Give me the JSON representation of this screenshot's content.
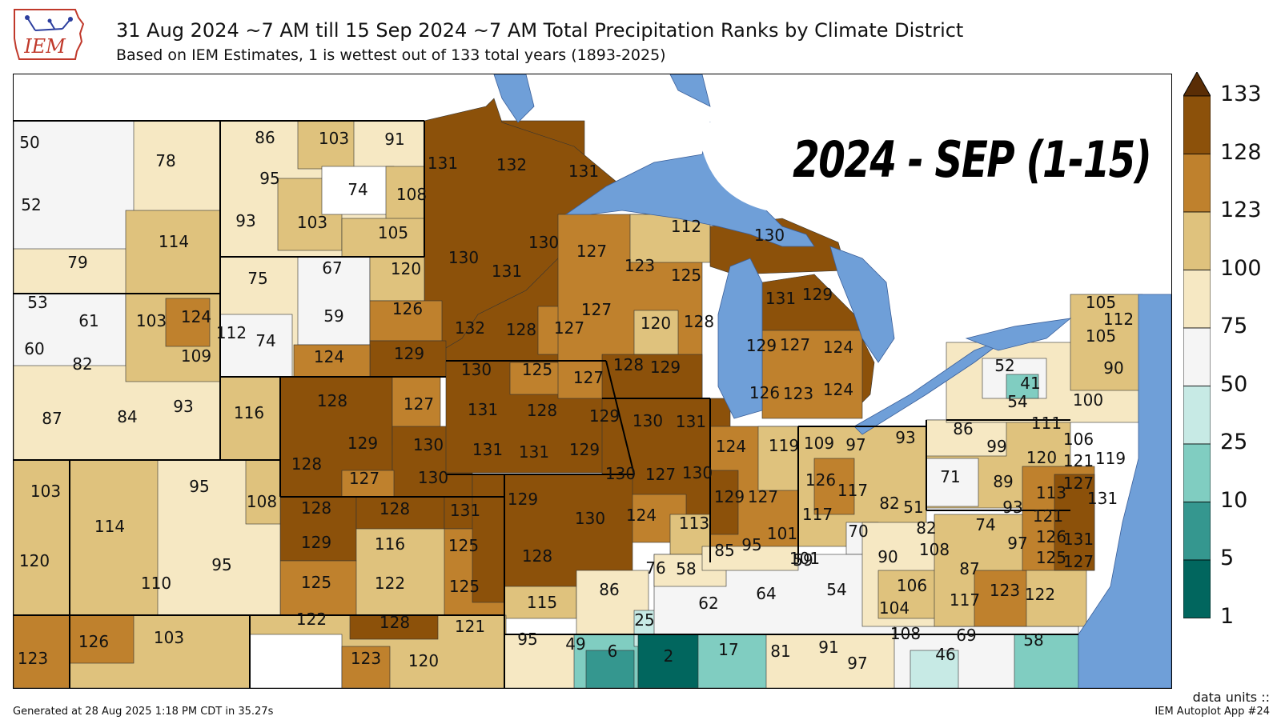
{
  "header": {
    "title": "31 Aug 2024 ~7 AM till 15 Sep 2024 ~7 AM Total Precipitation Ranks by Climate District",
    "subtitle": "Based on IEM Estimates, 1 is wettest out of 133 total years (1893-2025)"
  },
  "logo": {
    "text": "IEM"
  },
  "overlay_label": "2024 - SEP (1-15)",
  "colorbar": {
    "ticks": [
      "133",
      "128",
      "123",
      "100",
      "75",
      "50",
      "25",
      "10",
      "5",
      "1"
    ],
    "colors": [
      "#5a2d05",
      "#8c510a",
      "#bf812d",
      "#dfc27d",
      "#f6e8c3",
      "#f5f5f5",
      "#c7eae5",
      "#80cdc1",
      "#35978f",
      "#01665e"
    ]
  },
  "districts": [
    {
      "value": "50"
    },
    {
      "value": "78"
    },
    {
      "value": "52"
    },
    {
      "value": "114"
    },
    {
      "value": "79"
    },
    {
      "value": "86"
    },
    {
      "value": "103"
    },
    {
      "value": "91"
    },
    {
      "value": "95"
    },
    {
      "value": "74"
    },
    {
      "value": "108"
    },
    {
      "value": "93"
    },
    {
      "value": "103"
    },
    {
      "value": "105"
    },
    {
      "value": "131"
    },
    {
      "value": "132"
    },
    {
      "value": "131"
    },
    {
      "value": "130"
    },
    {
      "value": "130"
    },
    {
      "value": "131"
    },
    {
      "value": "132"
    },
    {
      "value": "128"
    },
    {
      "value": "127"
    },
    {
      "value": "75"
    },
    {
      "value": "67"
    },
    {
      "value": "120"
    },
    {
      "value": "59"
    },
    {
      "value": "126"
    },
    {
      "value": "74"
    },
    {
      "value": "112"
    },
    {
      "value": "124"
    },
    {
      "value": "129"
    },
    {
      "value": "53"
    },
    {
      "value": "61"
    },
    {
      "value": "103"
    },
    {
      "value": "124"
    },
    {
      "value": "60"
    },
    {
      "value": "82"
    },
    {
      "value": "109"
    },
    {
      "value": "87"
    },
    {
      "value": "84"
    },
    {
      "value": "93"
    },
    {
      "value": "116"
    },
    {
      "value": "128"
    },
    {
      "value": "127"
    },
    {
      "value": "129"
    },
    {
      "value": "130"
    },
    {
      "value": "128"
    },
    {
      "value": "127"
    },
    {
      "value": "130"
    },
    {
      "value": "130"
    },
    {
      "value": "125"
    },
    {
      "value": "127"
    },
    {
      "value": "131"
    },
    {
      "value": "128"
    },
    {
      "value": "129"
    },
    {
      "value": "131"
    },
    {
      "value": "131"
    },
    {
      "value": "129"
    },
    {
      "value": "127"
    },
    {
      "value": "123"
    },
    {
      "value": "125"
    },
    {
      "value": "112"
    },
    {
      "value": "127"
    },
    {
      "value": "120"
    },
    {
      "value": "128"
    },
    {
      "value": "128"
    },
    {
      "value": "129"
    },
    {
      "value": "130"
    },
    {
      "value": "131"
    },
    {
      "value": "129"
    },
    {
      "value": "130"
    },
    {
      "value": "131"
    },
    {
      "value": "129"
    },
    {
      "value": "127"
    },
    {
      "value": "124"
    },
    {
      "value": "126"
    },
    {
      "value": "123"
    },
    {
      "value": "124"
    },
    {
      "value": "103"
    },
    {
      "value": "95"
    },
    {
      "value": "108"
    },
    {
      "value": "114"
    },
    {
      "value": "120"
    },
    {
      "value": "95"
    },
    {
      "value": "110"
    },
    {
      "value": "128"
    },
    {
      "value": "128"
    },
    {
      "value": "131"
    },
    {
      "value": "129"
    },
    {
      "value": "116"
    },
    {
      "value": "125"
    },
    {
      "value": "125"
    },
    {
      "value": "122"
    },
    {
      "value": "125"
    },
    {
      "value": "129"
    },
    {
      "value": "130"
    },
    {
      "value": "128"
    },
    {
      "value": "124"
    },
    {
      "value": "115"
    },
    {
      "value": "86"
    },
    {
      "value": "130"
    },
    {
      "value": "127"
    },
    {
      "value": "130"
    },
    {
      "value": "124"
    },
    {
      "value": "113"
    },
    {
      "value": "129"
    },
    {
      "value": "127"
    },
    {
      "value": "119"
    },
    {
      "value": "109"
    },
    {
      "value": "97"
    },
    {
      "value": "93"
    },
    {
      "value": "126"
    },
    {
      "value": "117"
    },
    {
      "value": "101"
    },
    {
      "value": "117"
    },
    {
      "value": "82"
    },
    {
      "value": "51"
    },
    {
      "value": "82"
    },
    {
      "value": "70"
    },
    {
      "value": "85"
    },
    {
      "value": "95"
    },
    {
      "value": "101"
    },
    {
      "value": "76"
    },
    {
      "value": "58"
    },
    {
      "value": "59"
    },
    {
      "value": "62"
    },
    {
      "value": "64"
    },
    {
      "value": "54"
    },
    {
      "value": "90"
    },
    {
      "value": "108"
    },
    {
      "value": "106"
    },
    {
      "value": "104"
    },
    {
      "value": "87"
    },
    {
      "value": "117"
    },
    {
      "value": "123"
    },
    {
      "value": "122"
    },
    {
      "value": "123"
    },
    {
      "value": "126"
    },
    {
      "value": "103"
    },
    {
      "value": "122"
    },
    {
      "value": "128"
    },
    {
      "value": "121"
    },
    {
      "value": "123"
    },
    {
      "value": "120"
    },
    {
      "value": "95"
    },
    {
      "value": "49"
    },
    {
      "value": "6"
    },
    {
      "value": "25"
    },
    {
      "value": "2"
    },
    {
      "value": "17"
    },
    {
      "value": "81"
    },
    {
      "value": "91"
    },
    {
      "value": "97"
    },
    {
      "value": "108"
    },
    {
      "value": "69"
    },
    {
      "value": "46"
    },
    {
      "value": "58"
    },
    {
      "value": "86"
    },
    {
      "value": "99"
    },
    {
      "value": "71"
    },
    {
      "value": "89"
    },
    {
      "value": "111"
    },
    {
      "value": "106"
    },
    {
      "value": "120"
    },
    {
      "value": "121"
    },
    {
      "value": "119"
    },
    {
      "value": "127"
    },
    {
      "value": "113"
    },
    {
      "value": "93"
    },
    {
      "value": "74"
    },
    {
      "value": "121"
    },
    {
      "value": "97"
    },
    {
      "value": "126"
    },
    {
      "value": "131"
    },
    {
      "value": "125"
    },
    {
      "value": "131"
    },
    {
      "value": "127"
    },
    {
      "value": "52"
    },
    {
      "value": "41"
    },
    {
      "value": "54"
    },
    {
      "value": "100"
    },
    {
      "value": "90"
    },
    {
      "value": "105"
    },
    {
      "value": "112"
    },
    {
      "value": "105"
    }
  ],
  "footer": {
    "generated": "Generated at 28 Aug 2025 1:18 PM CDT in 35.27s",
    "units": "data units ::",
    "app": "IEM Autoplot App #24"
  }
}
